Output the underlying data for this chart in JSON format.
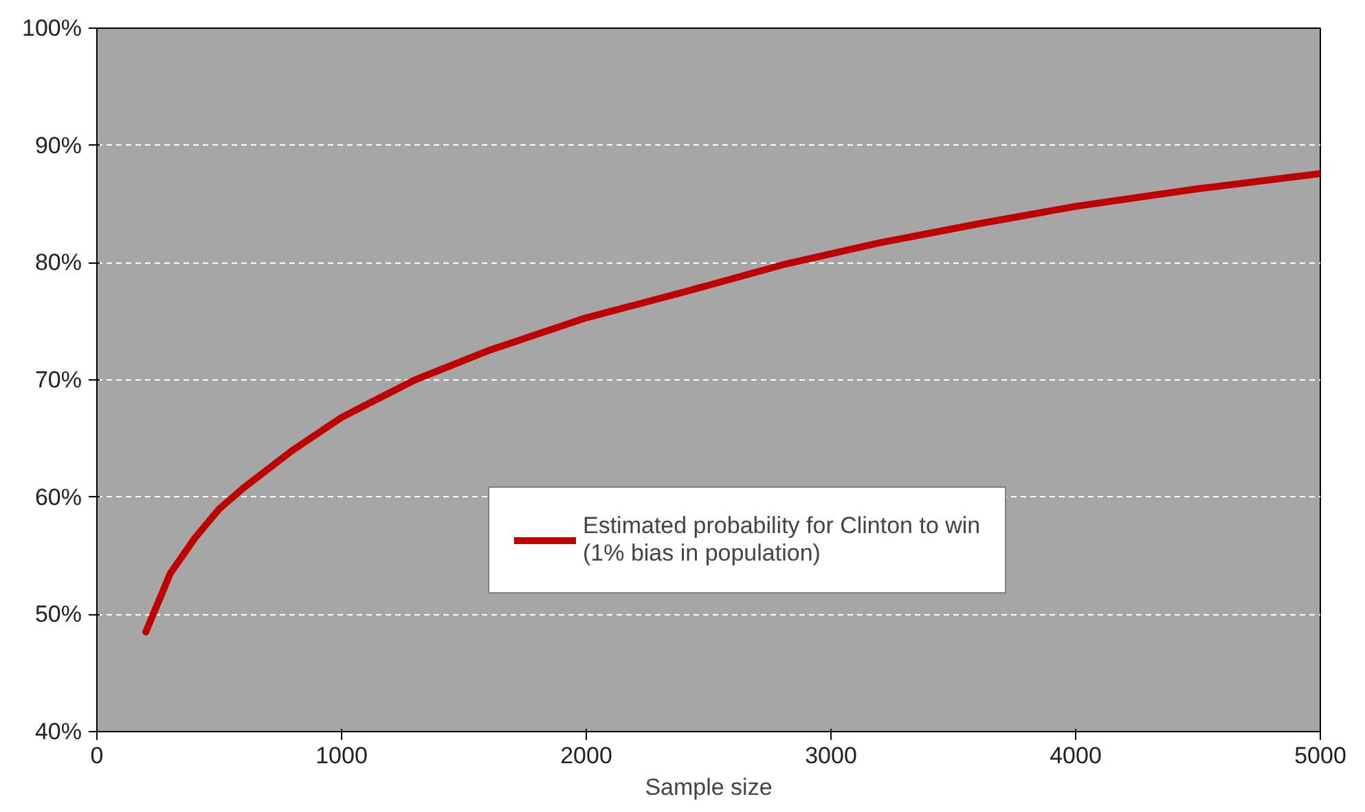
{
  "chart_data": {
    "type": "line",
    "xlabel": "Sample size",
    "x": [
      200,
      250,
      300,
      400,
      500,
      600,
      800,
      1000,
      1300,
      1600,
      2000,
      2400,
      2800,
      3200,
      3600,
      4000,
      4500,
      5000
    ],
    "series": [
      {
        "name": "Estimated probability for Clinton to win (1% bias in population)",
        "color": "#c00000",
        "values": [
          48.5,
          51,
          53.5,
          56.5,
          59,
          60.8,
          64,
          66.8,
          70,
          72.5,
          75.3,
          77.5,
          79.8,
          81.7,
          83.3,
          84.8,
          86.3,
          87.6
        ]
      }
    ],
    "xlim": [
      0,
      5000
    ],
    "xticks": [
      0,
      1000,
      2000,
      3000,
      4000,
      5000
    ],
    "ylim": [
      40,
      100
    ],
    "yticks": [
      {
        "value": 40,
        "label": "40%"
      },
      {
        "value": 50,
        "label": "50%"
      },
      {
        "value": 60,
        "label": "60%"
      },
      {
        "value": 70,
        "label": "70%"
      },
      {
        "value": 80,
        "label": "80%"
      },
      {
        "value": 90,
        "label": "90%"
      },
      {
        "value": 100,
        "label": "100%"
      }
    ],
    "grid": "y",
    "legend": "bottom right",
    "marker": "none",
    "line_style": "solid"
  }
}
